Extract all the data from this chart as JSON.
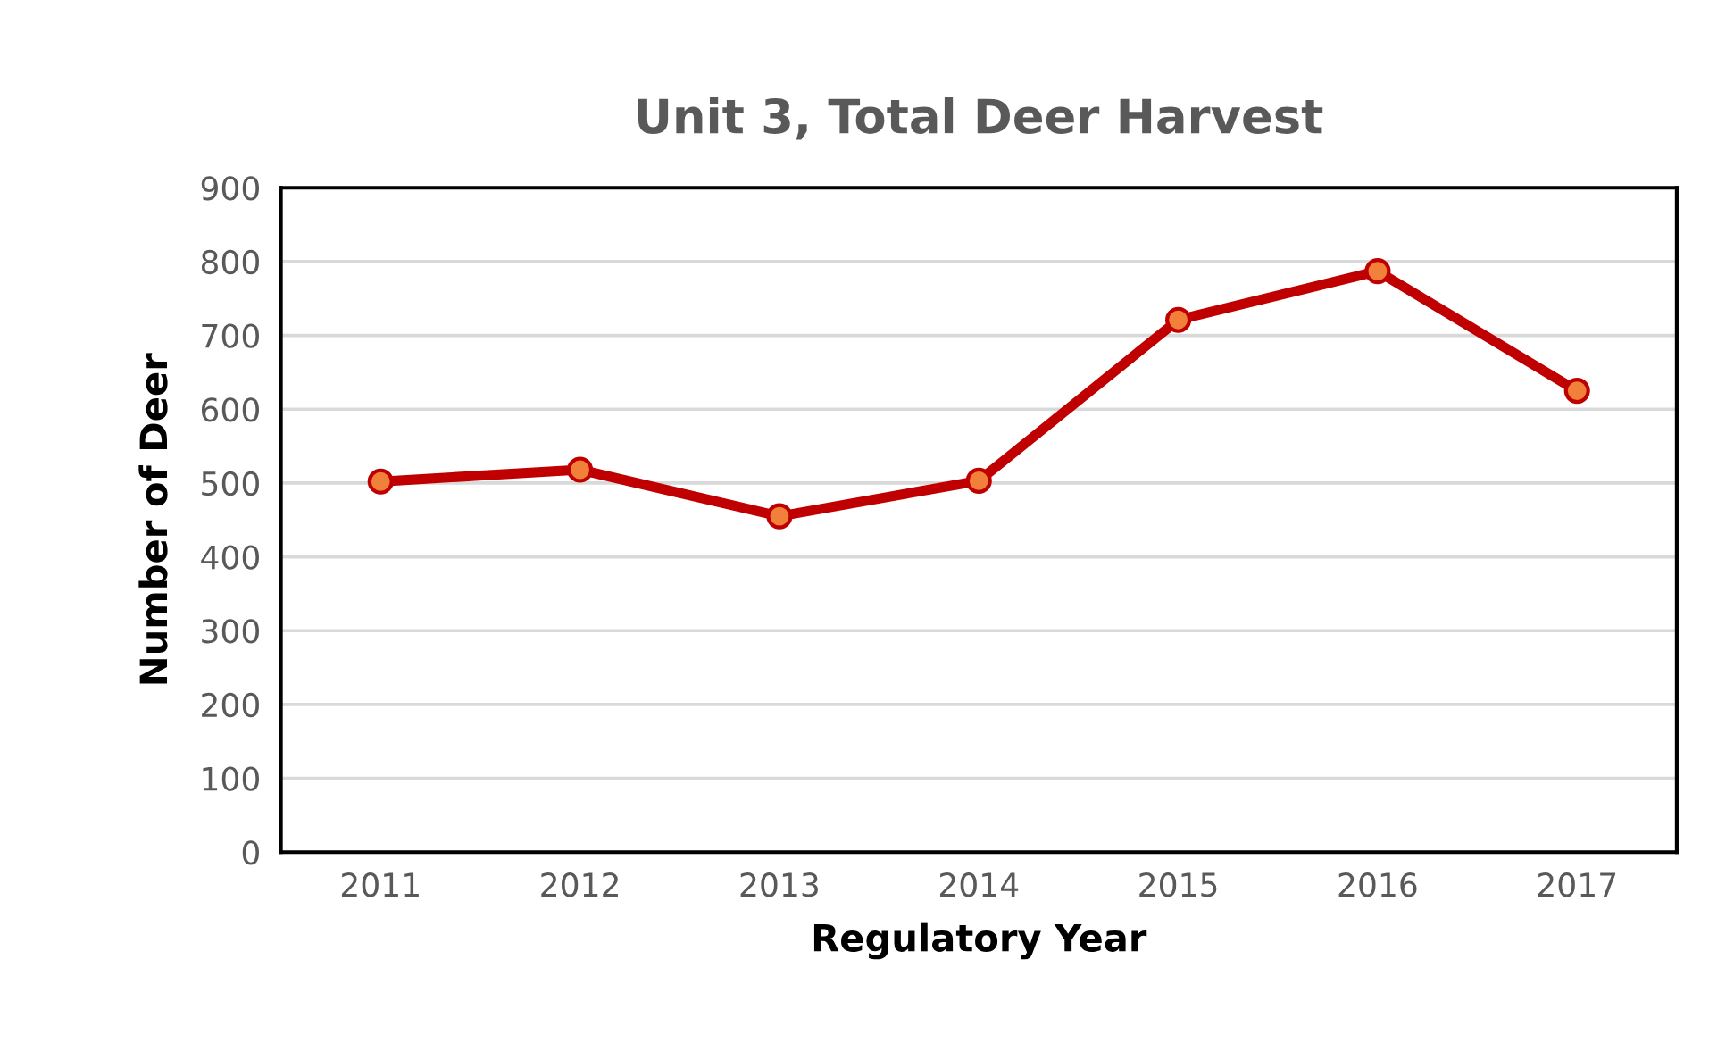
{
  "chart_data": {
    "type": "line",
    "title": "Unit 3, Total Deer Harvest",
    "xlabel": "Regulatory Year",
    "ylabel": "Number of Deer",
    "categories": [
      "2011",
      "2012",
      "2013",
      "2014",
      "2015",
      "2016",
      "2017"
    ],
    "series": [
      {
        "color": "#c00000",
        "values": [
          502,
          518,
          455,
          503,
          721,
          787,
          625
        ]
      }
    ],
    "ylim": [
      0,
      900
    ],
    "yticks": [
      0,
      100,
      200,
      300,
      400,
      500,
      600,
      700,
      800,
      900
    ],
    "grid": "y",
    "marker": "circle",
    "line_style": "solid"
  }
}
